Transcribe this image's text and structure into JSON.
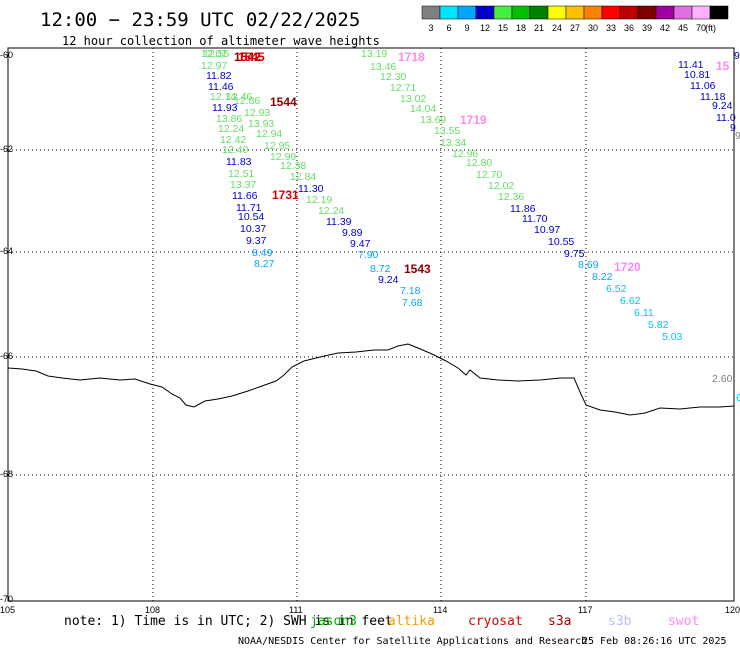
{
  "header": {
    "title": "12:00 − 23:59 UTC 02/22/2025",
    "subtitle": "12 hour collection of altimeter wave heights"
  },
  "legend": {
    "unit": "(ft)",
    "bins": [
      {
        "label": "3",
        "color": "#808080"
      },
      {
        "label": "6",
        "color": "#00e5ff"
      },
      {
        "label": "9",
        "color": "#00a8ff"
      },
      {
        "label": "12",
        "color": "#0000cc"
      },
      {
        "label": "15",
        "color": "#44ee44"
      },
      {
        "label": "18",
        "color": "#00c000"
      },
      {
        "label": "21",
        "color": "#008000"
      },
      {
        "label": "24",
        "color": "#ffff00"
      },
      {
        "label": "27",
        "color": "#ffc000"
      },
      {
        "label": "30",
        "color": "#ff8000"
      },
      {
        "label": "33",
        "color": "#ff0000"
      },
      {
        "label": "36",
        "color": "#c00000"
      },
      {
        "label": "39",
        "color": "#800000"
      },
      {
        "label": "42",
        "color": "#a000a0"
      },
      {
        "label": "45",
        "color": "#e070e0"
      },
      {
        "label": "70",
        "color": "#ffb0ff"
      },
      {
        "label": "",
        "color": "#000000"
      }
    ]
  },
  "axes": {
    "lat_labels": [
      "-60",
      "-62",
      "-64",
      "-66",
      "-68",
      "-70"
    ],
    "lon_labels": [
      "105",
      "108",
      "111",
      "114",
      "117",
      "120"
    ]
  },
  "colors": {
    "c12": "#0000cc",
    "c15": "#66dd66",
    "c9": "#00a8ff",
    "c6": "#00c8e8",
    "c3": "#808080",
    "dark_red": "#8b0000",
    "red": "#dd0000",
    "pink": "#ff88ee"
  },
  "tracks": [
    {
      "name": "track-a",
      "values": [
        {
          "v": "12.07",
          "c": "c15"
        },
        {
          "v": "12.97",
          "c": "c15"
        },
        {
          "v": "12.55",
          "c": "c15"
        },
        {
          "v": "11.82",
          "c": "c12"
        },
        {
          "v": "11.46",
          "c": "c12"
        },
        {
          "v": "12.14",
          "c": "c15"
        },
        {
          "v": "12.46",
          "c": "c15"
        },
        {
          "v": "11.93",
          "c": "c12"
        },
        {
          "v": "13.86",
          "c": "c15"
        },
        {
          "v": "12.24",
          "c": "c15"
        },
        {
          "v": "12.42",
          "c": "c15"
        },
        {
          "v": "12.40",
          "c": "c15"
        },
        {
          "v": "11.83",
          "c": "c12"
        },
        {
          "v": "12.51",
          "c": "c15"
        },
        {
          "v": "13.37",
          "c": "c15"
        },
        {
          "v": "11.66",
          "c": "c12"
        },
        {
          "v": "11.71",
          "c": "c12"
        },
        {
          "v": "10.54",
          "c": "c12"
        },
        {
          "v": "10.37",
          "c": "c12"
        },
        {
          "v": "9.37",
          "c": "c12"
        },
        {
          "v": "8.49",
          "c": "c9"
        },
        {
          "v": "8.27",
          "c": "c9"
        }
      ]
    },
    {
      "name": "track-b",
      "values": [
        {
          "v": "12.86",
          "c": "c15"
        },
        {
          "v": "12.93",
          "c": "c15"
        },
        {
          "v": "13.93",
          "c": "c15"
        },
        {
          "v": "12.94",
          "c": "c15"
        },
        {
          "v": "12.95",
          "c": "c15"
        },
        {
          "v": "12.99",
          "c": "c15"
        },
        {
          "v": "12.38",
          "c": "c15"
        },
        {
          "v": "12.84",
          "c": "c15"
        },
        {
          "v": "11.30",
          "c": "c12"
        },
        {
          "v": "12.19",
          "c": "c15"
        },
        {
          "v": "12.24",
          "c": "c15"
        },
        {
          "v": "11.39",
          "c": "c12"
        },
        {
          "v": "9.89",
          "c": "c12"
        },
        {
          "v": "9.47",
          "c": "c12"
        },
        {
          "v": "7.90",
          "c": "c9"
        },
        {
          "v": "8.72",
          "c": "c9"
        },
        {
          "v": "9.24",
          "c": "c12"
        },
        {
          "v": "7.18",
          "c": "c9"
        },
        {
          "v": "7.68",
          "c": "c9"
        }
      ]
    },
    {
      "name": "track-c",
      "values": [
        {
          "v": "13.19",
          "c": "c15"
        },
        {
          "v": "13.46",
          "c": "c15"
        },
        {
          "v": "12.30",
          "c": "c15"
        },
        {
          "v": "12.71",
          "c": "c15"
        },
        {
          "v": "13.02",
          "c": "c15"
        },
        {
          "v": "14.04",
          "c": "c15"
        },
        {
          "v": "13.69",
          "c": "c15"
        },
        {
          "v": "13.55",
          "c": "c15"
        },
        {
          "v": "13.34",
          "c": "c15"
        },
        {
          "v": "12.96",
          "c": "c15"
        },
        {
          "v": "12.80",
          "c": "c15"
        },
        {
          "v": "12.70",
          "c": "c15"
        },
        {
          "v": "12.02",
          "c": "c15"
        },
        {
          "v": "12.36",
          "c": "c15"
        },
        {
          "v": "11.86",
          "c": "c12"
        },
        {
          "v": "11.70",
          "c": "c12"
        },
        {
          "v": "10.97",
          "c": "c12"
        },
        {
          "v": "10.55",
          "c": "c12"
        },
        {
          "v": "9.75",
          "c": "c12"
        },
        {
          "v": "8.69",
          "c": "c9"
        },
        {
          "v": "8.22",
          "c": "c9"
        },
        {
          "v": "6.52",
          "c": "c6"
        },
        {
          "v": "6.62",
          "c": "c6"
        },
        {
          "v": "6.11",
          "c": "c6"
        },
        {
          "v": "5.82",
          "c": "c6"
        },
        {
          "v": "5.03",
          "c": "c6"
        }
      ]
    },
    {
      "name": "track-d",
      "values": [
        {
          "v": "11.41",
          "c": "c12"
        },
        {
          "v": "10.81",
          "c": "c12"
        },
        {
          "v": "11.06",
          "c": "c12"
        },
        {
          "v": "11.18",
          "c": "c12"
        },
        {
          "v": "9.24",
          "c": "c12"
        },
        {
          "v": "11.0",
          "c": "c12"
        },
        {
          "v": "9",
          "c": "c12"
        },
        {
          "v": "9",
          "c": "c3"
        }
      ]
    }
  ],
  "extra_values": [
    {
      "v": "2.60",
      "c": "c3"
    },
    {
      "v": "6",
      "c": "c6"
    },
    {
      "v": "9",
      "c": "c12"
    }
  ],
  "time_labels": [
    {
      "v": "1542",
      "c": "dark_red"
    },
    {
      "v": "1545",
      "c": "red"
    },
    {
      "v": "1544",
      "c": "dark_red"
    },
    {
      "v": "1731",
      "c": "red"
    },
    {
      "v": "1718",
      "c": "pink"
    },
    {
      "v": "1719",
      "c": "pink"
    },
    {
      "v": "1543",
      "c": "dark_red"
    },
    {
      "v": "1720",
      "c": "pink"
    },
    {
      "v": "15",
      "c": "pink"
    }
  ],
  "footer": {
    "note_prefix": "note: 1) Time is in UTC; 2) SWH is in feet",
    "satellites": [
      {
        "name": "jason3",
        "color": "#00b000"
      },
      {
        "name": "altika",
        "color": "#ff9900"
      },
      {
        "name": "cryosat",
        "color": "#dd0000"
      },
      {
        "name": "s3a",
        "color": "#990000"
      },
      {
        "name": "s3b",
        "color": "#bbbbff"
      },
      {
        "name": "swot",
        "color": "#ff88ee"
      }
    ],
    "credit": "NOAA/NESDIS Center for Satellite Applications and Research",
    "generated": "25 Feb 08:26:16 UTC 2025"
  }
}
